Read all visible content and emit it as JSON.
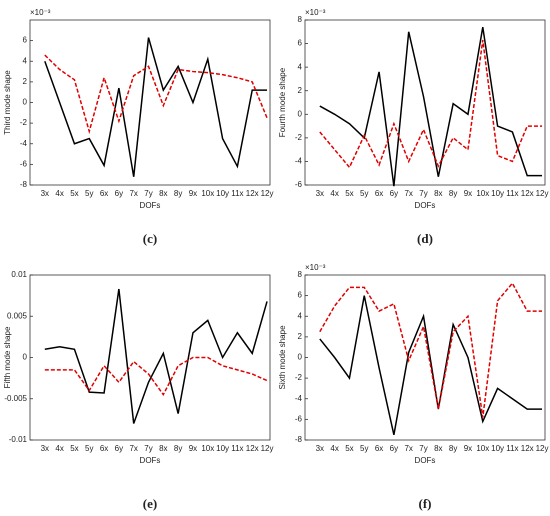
{
  "chart_data": [
    {
      "type": "line",
      "caption": "(c)",
      "ylabel": "Third mode shape",
      "xlabel": "DOFs",
      "exponent": "×10⁻³",
      "categories": [
        "3x",
        "4x",
        "5x",
        "5y",
        "6x",
        "6y",
        "7x",
        "7y",
        "8x",
        "8y",
        "9x",
        "10x",
        "10y",
        "11x",
        "12x",
        "12y"
      ],
      "ylim": [
        -8,
        8
      ],
      "yticks": [
        -8,
        -6,
        -4,
        -2,
        0,
        2,
        4,
        6
      ],
      "series": [
        {
          "color": "#000000",
          "dash": false,
          "values": [
            4.0,
            0,
            -4.0,
            -3.5,
            -6.1,
            1.4,
            -7.2,
            6.3,
            1.2,
            3.5,
            0.0,
            4.2,
            -3.5,
            -6.2,
            1.2,
            1.2
          ]
        },
        {
          "color": "#e00000",
          "dash": true,
          "values": [
            4.6,
            3.2,
            2.2,
            -2.8,
            2.4,
            -1.8,
            2.6,
            3.5,
            -0.3,
            3.2,
            3.0,
            2.9,
            2.7,
            2.4,
            2.0,
            -1.5
          ]
        }
      ]
    },
    {
      "type": "line",
      "caption": "(d)",
      "ylabel": "Fourth mode shape",
      "xlabel": "DOFs",
      "exponent": "×10⁻³",
      "categories": [
        "3x",
        "4x",
        "5x",
        "5y",
        "6x",
        "6y",
        "7x",
        "7y",
        "8x",
        "8y",
        "9x",
        "10x",
        "10y",
        "11x",
        "12x",
        "12y"
      ],
      "ylim": [
        -6,
        8
      ],
      "yticks": [
        -6,
        -4,
        -2,
        0,
        2,
        4,
        6,
        8
      ],
      "series": [
        {
          "color": "#000000",
          "dash": false,
          "values": [
            0.7,
            0,
            -0.8,
            -2.0,
            3.6,
            -6.1,
            7.0,
            1.5,
            -5.3,
            0.9,
            0,
            7.4,
            -1.0,
            -1.5,
            -5.2,
            -5.2
          ]
        },
        {
          "color": "#e00000",
          "dash": true,
          "values": [
            -1.5,
            -3.0,
            -4.5,
            -1.8,
            -4.3,
            -0.8,
            -4.0,
            -1.3,
            -4.4,
            -2.0,
            -3.0,
            6.3,
            -3.5,
            -4.0,
            -1.0,
            -1.0
          ]
        }
      ]
    },
    {
      "type": "line",
      "caption": "(e)",
      "ylabel": "Fifth mode shape",
      "xlabel": "DOFs",
      "categories": [
        "3x",
        "4x",
        "5x",
        "5y",
        "6x",
        "6y",
        "7x",
        "7y",
        "8x",
        "8y",
        "9x",
        "10x",
        "10y",
        "11x",
        "12x",
        "12y"
      ],
      "ylim": [
        -0.01,
        0.01
      ],
      "yticks": [
        -0.01,
        -0.005,
        0,
        0.005,
        0.01
      ],
      "series": [
        {
          "color": "#000000",
          "dash": false,
          "values": [
            0.001,
            0.0013,
            0.001,
            -0.0042,
            -0.0043,
            0.0083,
            -0.008,
            -0.003,
            0.0005,
            -0.0068,
            0.003,
            0.0045,
            0,
            0.003,
            0.0005,
            0.0068
          ]
        },
        {
          "color": "#e00000",
          "dash": true,
          "values": [
            -0.0015,
            -0.0015,
            -0.0015,
            -0.004,
            -0.001,
            -0.003,
            -0.0005,
            -0.002,
            -0.0045,
            -0.001,
            0,
            0,
            -0.001,
            -0.0015,
            -0.002,
            -0.0028
          ]
        }
      ]
    },
    {
      "type": "line",
      "caption": "(f)",
      "ylabel": "Sixth mode shape",
      "xlabel": "DOFs",
      "exponent": "×10⁻³",
      "categories": [
        "3x",
        "4x",
        "5x",
        "5y",
        "6x",
        "6y",
        "7x",
        "7y",
        "8x",
        "8y",
        "9x",
        "10x",
        "10y",
        "11x",
        "12x",
        "12y"
      ],
      "ylim": [
        -8,
        8
      ],
      "yticks": [
        -8,
        -6,
        -4,
        -2,
        0,
        2,
        4,
        6,
        8
      ],
      "series": [
        {
          "color": "#000000",
          "dash": false,
          "values": [
            1.8,
            0,
            -2.0,
            6.0,
            -1.0,
            -7.5,
            0.5,
            4.0,
            -5.0,
            3.2,
            0,
            -6.2,
            -3.0,
            -4.0,
            -5.0,
            -5.0
          ]
        },
        {
          "color": "#e00000",
          "dash": true,
          "values": [
            2.5,
            5.0,
            6.8,
            6.8,
            4.5,
            5.2,
            -0.3,
            3.0,
            -5.0,
            2.5,
            4.0,
            -5.8,
            5.5,
            7.2,
            4.5,
            4.5
          ]
        }
      ]
    }
  ]
}
